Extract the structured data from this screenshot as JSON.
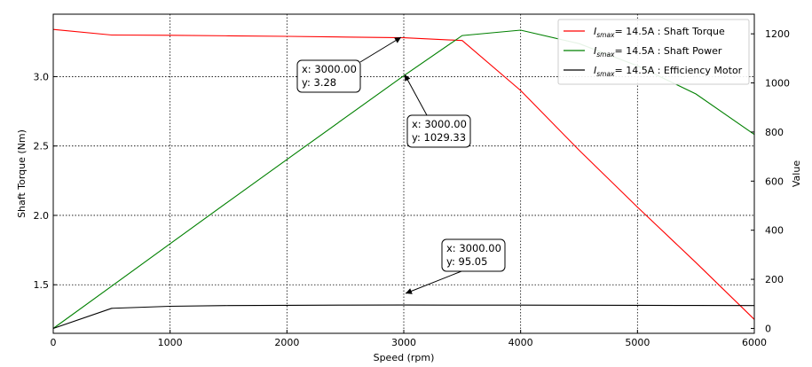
{
  "chart_data": {
    "type": "line",
    "xlabel": "Speed  (rpm)",
    "ylabel_left": "Shaft Torque  (Nm)",
    "ylabel_right": "Value",
    "xlim": [
      0,
      6000
    ],
    "ylim_left": [
      1.15,
      3.45
    ],
    "ylim_right": [
      -20,
      1280
    ],
    "x_ticks": [
      0,
      1000,
      2000,
      3000,
      4000,
      5000,
      6000
    ],
    "y_left_ticks": [
      1.5,
      2.0,
      2.5,
      3.0
    ],
    "y_right_ticks": [
      0,
      200,
      400,
      600,
      800,
      1000,
      1200
    ],
    "grid": true,
    "legend_position": "top-right",
    "legend_prefix": "I",
    "legend_subscript": "smax",
    "series": [
      {
        "name": "Shaft Torque",
        "legend_label": "= 14.5A : Shaft Torque",
        "color": "#ff0000",
        "axis": "left",
        "x": [
          0,
          500,
          1000,
          1500,
          2000,
          2500,
          3000,
          3500,
          4000,
          4500,
          5000,
          5500,
          6000
        ],
        "y": [
          3.34,
          3.3,
          3.298,
          3.294,
          3.29,
          3.285,
          3.28,
          3.26,
          2.9,
          2.47,
          2.06,
          1.66,
          1.25
        ]
      },
      {
        "name": "Shaft Power",
        "legend_label": "= 14.5A : Shaft Power",
        "color": "#008000",
        "axis": "right",
        "x": [
          0,
          500,
          1000,
          1500,
          2000,
          2500,
          3000,
          3500,
          4000,
          4500,
          5000,
          5500,
          6000
        ],
        "y": [
          0,
          172,
          345,
          517,
          688,
          859,
          1029.33,
          1193,
          1215,
          1160,
          1070,
          955,
          790
        ]
      },
      {
        "name": "Efficiency Motor",
        "legend_label": "= 14.5A : Efficiency Motor",
        "color": "#000000",
        "axis": "right",
        "x": [
          0,
          500,
          1000,
          1500,
          2000,
          2500,
          3000,
          3500,
          4000,
          4500,
          5000,
          5500,
          6000
        ],
        "y": [
          0,
          82,
          90,
          93,
          94,
          94.8,
          95.05,
          95,
          94.8,
          94.5,
          94,
          93.5,
          93
        ]
      }
    ],
    "annotations": [
      {
        "line1": "x: 3000.00",
        "line2": "y: 3.28",
        "x": 3000,
        "y": 3.28,
        "axis": "left"
      },
      {
        "line1": "x: 3000.00",
        "line2": "y: 1029.33",
        "x": 3000,
        "y": 1029.33,
        "axis": "right"
      },
      {
        "line1": "x: 3000.00",
        "line2": "y: 95.05",
        "x": 3000,
        "y": 95.05,
        "axis": "right"
      }
    ]
  }
}
